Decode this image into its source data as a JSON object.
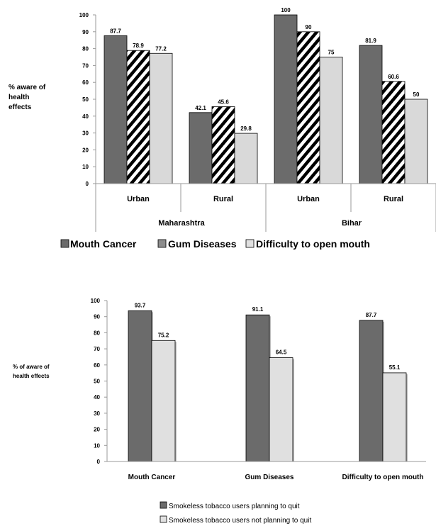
{
  "chart_data": [
    {
      "type": "bar",
      "ylabel": [
        "% aware of",
        "health",
        "effects"
      ],
      "ylim": [
        0,
        100
      ],
      "yticks": [
        "0",
        "10",
        "20",
        "30",
        "40",
        "50",
        "60",
        "70",
        "80",
        "90",
        "100"
      ],
      "groups": [
        {
          "name": "Maharashtra",
          "categories": [
            "Urban",
            "Rural"
          ]
        },
        {
          "name": "Bihar",
          "categories": [
            "Urban",
            "Rural"
          ]
        }
      ],
      "categories": [
        "Urban",
        "Rural",
        "Urban",
        "Rural"
      ],
      "series": [
        {
          "name": "Mouth Cancer",
          "values": [
            87.7,
            42.1,
            100,
            81.9
          ],
          "color": "#6b6b6b",
          "pattern": "solid"
        },
        {
          "name": "Gum Diseases",
          "values": [
            78.9,
            45.6,
            90,
            60.6
          ],
          "color": "#000000",
          "pattern": "diagonal-stripes"
        },
        {
          "name": "Difficulty to open mouth",
          "values": [
            77.2,
            29.8,
            75,
            50
          ],
          "color": "#d9d9d9",
          "pattern": "solid"
        }
      ],
      "data_labels": [
        [
          "87.7",
          "42.1",
          "100",
          "81.9"
        ],
        [
          "78.9",
          "45.6",
          "90",
          "60.6"
        ],
        [
          "77.2",
          "29.8",
          "75",
          "50"
        ]
      ],
      "legend": [
        "Mouth Cancer",
        "Gum Diseases",
        "Difficulty to open mouth"
      ],
      "legend_position": "bottom",
      "grid": false
    },
    {
      "type": "bar",
      "ylabel": [
        "% of aware of",
        "health effects"
      ],
      "ylim": [
        0,
        100
      ],
      "yticks": [
        "0",
        "10",
        "20",
        "30",
        "40",
        "50",
        "60",
        "70",
        "80",
        "90",
        "100"
      ],
      "categories": [
        "Mouth Cancer",
        "Gum Diseases",
        "Difficulty to open mouth"
      ],
      "series": [
        {
          "name": "Smokeless tobacco users planning to quit",
          "values": [
            93.7,
            91.1,
            87.7
          ],
          "color": "#6b6b6b"
        },
        {
          "name": "Smokeless tobacco users not planning to quit",
          "values": [
            75.2,
            64.5,
            55.1
          ],
          "color": "#e0e0e0"
        }
      ],
      "data_labels": [
        [
          "93.7",
          "91.1",
          "87.7"
        ],
        [
          "75.2",
          "64.5",
          "55.1"
        ]
      ],
      "legend": [
        "Smokeless tobacco users planning to quit",
        "Smokeless tobacco users not planning to quit"
      ],
      "legend_position": "bottom",
      "grid": false
    }
  ]
}
